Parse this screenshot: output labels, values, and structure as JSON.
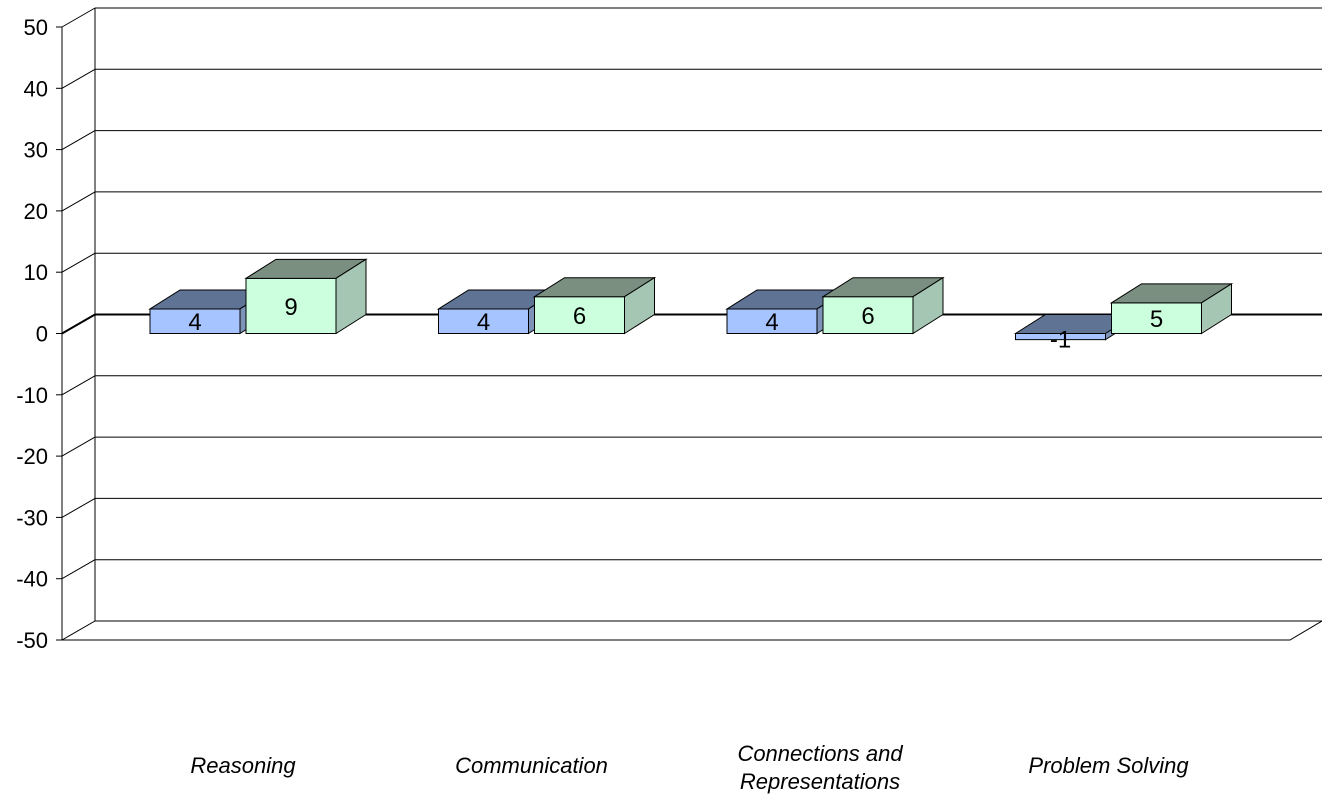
{
  "chart_data": {
    "type": "bar",
    "variant": "3d-clustered",
    "title": "",
    "xlabel": "",
    "ylabel": "",
    "ylim": [
      -50,
      50
    ],
    "ytick_step": 10,
    "yticks": [
      "50",
      "40",
      "30",
      "20",
      "10",
      "0",
      "-10",
      "-20",
      "-30",
      "-40",
      "-50"
    ],
    "grid": true,
    "legend": "none",
    "categories": [
      [
        "Reasoning"
      ],
      [
        "Communication"
      ],
      [
        "Connections and",
        "Representations"
      ],
      [
        "Problem Solving"
      ]
    ],
    "series": [
      {
        "values": [
          4,
          4,
          4,
          -1
        ],
        "color_front": "#a6c4ff",
        "color_top": "#5f7394",
        "color_side": "#7d93b8"
      },
      {
        "values": [
          9,
          6,
          6,
          5
        ],
        "color_front": "#ccffdd",
        "color_top": "#7a8f80",
        "color_side": "#a4c6b2"
      }
    ],
    "data_labels": [
      [
        "4",
        "4",
        "4",
        "-1"
      ],
      [
        "9",
        "6",
        "6",
        "5"
      ]
    ]
  }
}
